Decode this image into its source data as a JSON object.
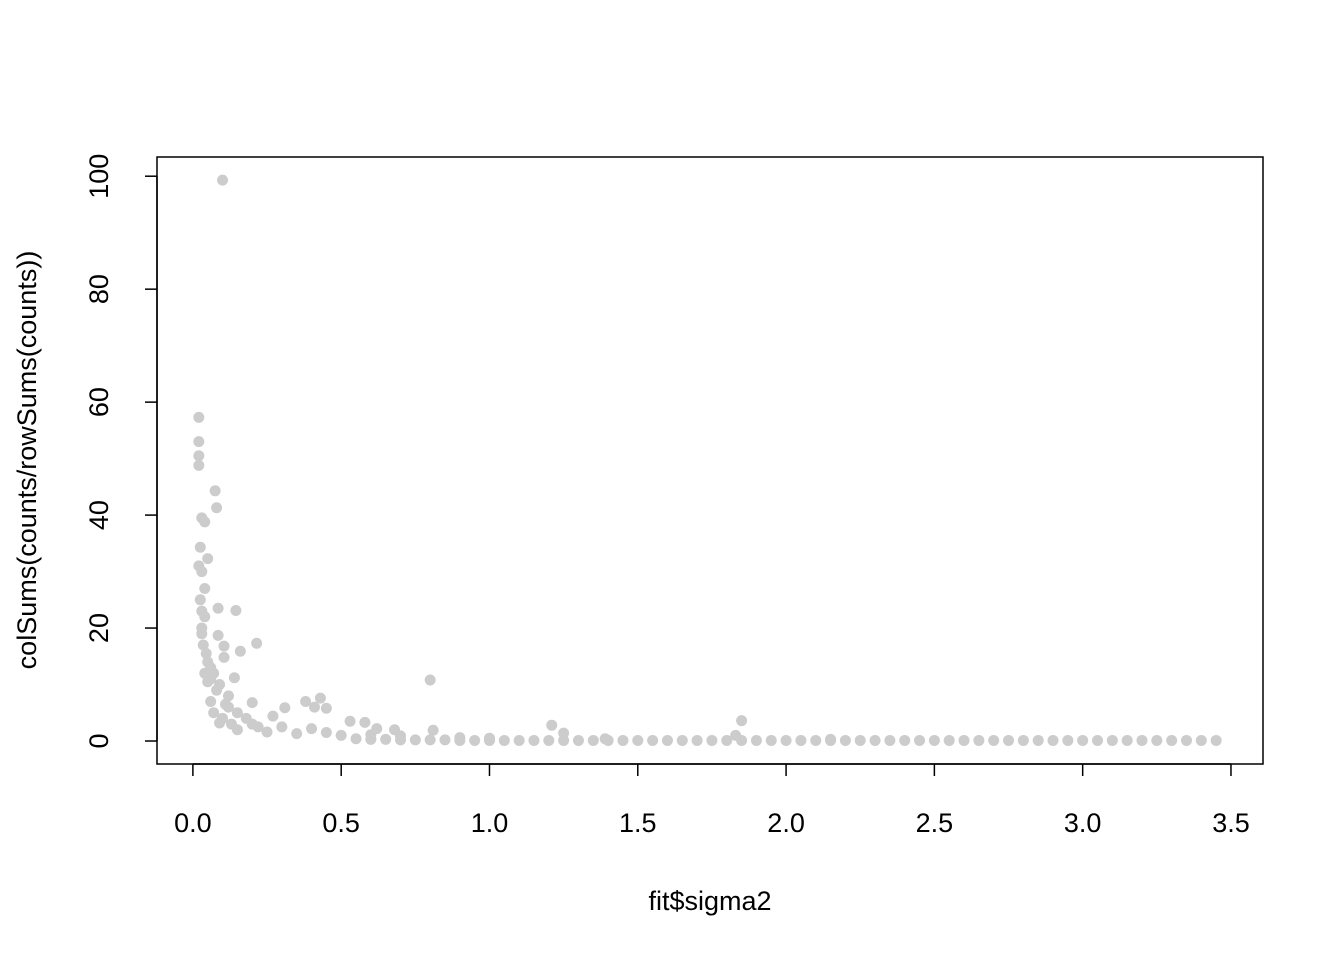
{
  "chart_data": {
    "type": "scatter",
    "x_label": "fit$sigma2",
    "y_label": "colSums(counts/rowSums(counts))",
    "color": "#cccccc",
    "xlim": [
      -0.121,
      3.608
    ],
    "ylim": [
      -4.07,
      103.4
    ],
    "xticks": [
      {
        "value": 0,
        "label": "0.0"
      },
      0.5,
      {
        "value": 1,
        "label": "1.0"
      },
      1.5,
      {
        "value": 2,
        "label": "2.0"
      },
      2.5,
      {
        "value": 3,
        "label": "3.0"
      },
      3.5
    ],
    "yticks": [
      0,
      20,
      40,
      60,
      80,
      100
    ],
    "x": [
      0.1,
      0.02,
      0.02,
      0.02,
      0.02,
      0.075,
      0.08,
      0.03,
      0.04,
      0.025,
      0.05,
      0.02,
      0.03,
      0.085,
      0.145,
      0.025,
      0.04,
      0.03,
      0.085,
      0.215,
      0.035,
      0.105,
      0.16,
      0.045,
      0.105,
      0.06,
      0.07,
      0.14,
      0.05,
      0.8,
      0.08,
      0.12,
      0.43,
      0.38,
      0.11,
      0.2,
      0.31,
      0.41,
      0.45,
      0.07,
      0.15,
      0.27,
      0.1,
      0.53,
      0.58,
      1.85,
      1.21,
      0.2,
      0.3,
      0.4,
      0.62,
      0.68,
      0.81,
      1.25,
      1.83,
      0.25,
      0.35,
      0.5,
      0.15,
      0.09,
      0.06,
      0.04,
      0.04,
      0.03,
      0.03,
      0.05,
      0.06,
      0.09,
      0.12,
      0.18,
      0.22,
      0.13,
      0.7,
      0.9,
      1.0,
      1.39,
      2.15,
      0.6,
      0.45,
      0.55,
      0.6,
      0.65,
      0.7,
      0.75,
      0.8,
      0.85,
      0.9,
      0.95,
      1.0,
      1.05,
      1.1,
      1.15,
      1.2,
      1.25,
      1.3,
      1.35,
      1.4,
      1.45,
      1.5,
      1.55,
      1.6,
      1.65,
      1.7,
      1.75,
      1.8,
      1.85,
      1.9,
      1.95,
      2.0,
      2.05,
      2.1,
      2.15,
      2.2,
      2.25,
      2.3,
      2.35,
      2.4,
      2.45,
      2.5,
      2.55,
      2.6,
      2.65,
      2.7,
      2.75,
      2.8,
      2.85,
      2.9,
      2.95,
      3.0,
      3.05,
      3.1,
      3.15,
      3.2,
      3.25,
      3.3,
      3.35,
      3.4,
      3.45
    ],
    "values": [
      99.3,
      57.3,
      53,
      50.5,
      48.8,
      44.3,
      41.3,
      39.5,
      38.8,
      34.3,
      32.3,
      31,
      30,
      23.5,
      23.1,
      25,
      22,
      20,
      18.7,
      17.3,
      17,
      16.8,
      15.9,
      15.5,
      14.8,
      13,
      12,
      11.2,
      10.5,
      10.8,
      9,
      8,
      7.6,
      7,
      6.5,
      6.8,
      5.9,
      6,
      5.8,
      5,
      5,
      4.4,
      4,
      3.5,
      3.3,
      3.6,
      2.8,
      3,
      2.5,
      2.2,
      2.2,
      2,
      1.9,
      1.4,
      1,
      1.6,
      1.3,
      1,
      2,
      3.2,
      7,
      12,
      27,
      19,
      23,
      14,
      11,
      10,
      6,
      4,
      2.5,
      3,
      0.9,
      0.6,
      0.5,
      0.4,
      0.3,
      1.1,
      1.5,
      0.4,
      0.3,
      0.3,
      0.2,
      0.2,
      0.2,
      0.2,
      0.1,
      0.1,
      0.1,
      0.1,
      0.1,
      0.1,
      0.1,
      0.1,
      0.1,
      0.1,
      0.1,
      0.1,
      0.1,
      0.1,
      0.1,
      0.1,
      0.1,
      0.1,
      0.1,
      0.1,
      0.1,
      0.1,
      0.1,
      0.1,
      0.1,
      0.1,
      0.1,
      0.1,
      0.1,
      0.1,
      0.1,
      0.1,
      0.1,
      0.1,
      0.1,
      0.1,
      0.1,
      0.1,
      0.1,
      0.1,
      0.1,
      0.1,
      0.1,
      0.1,
      0.1,
      0.1,
      0.1,
      0.1,
      0.1,
      0.1,
      0.1,
      0.1
    ]
  }
}
